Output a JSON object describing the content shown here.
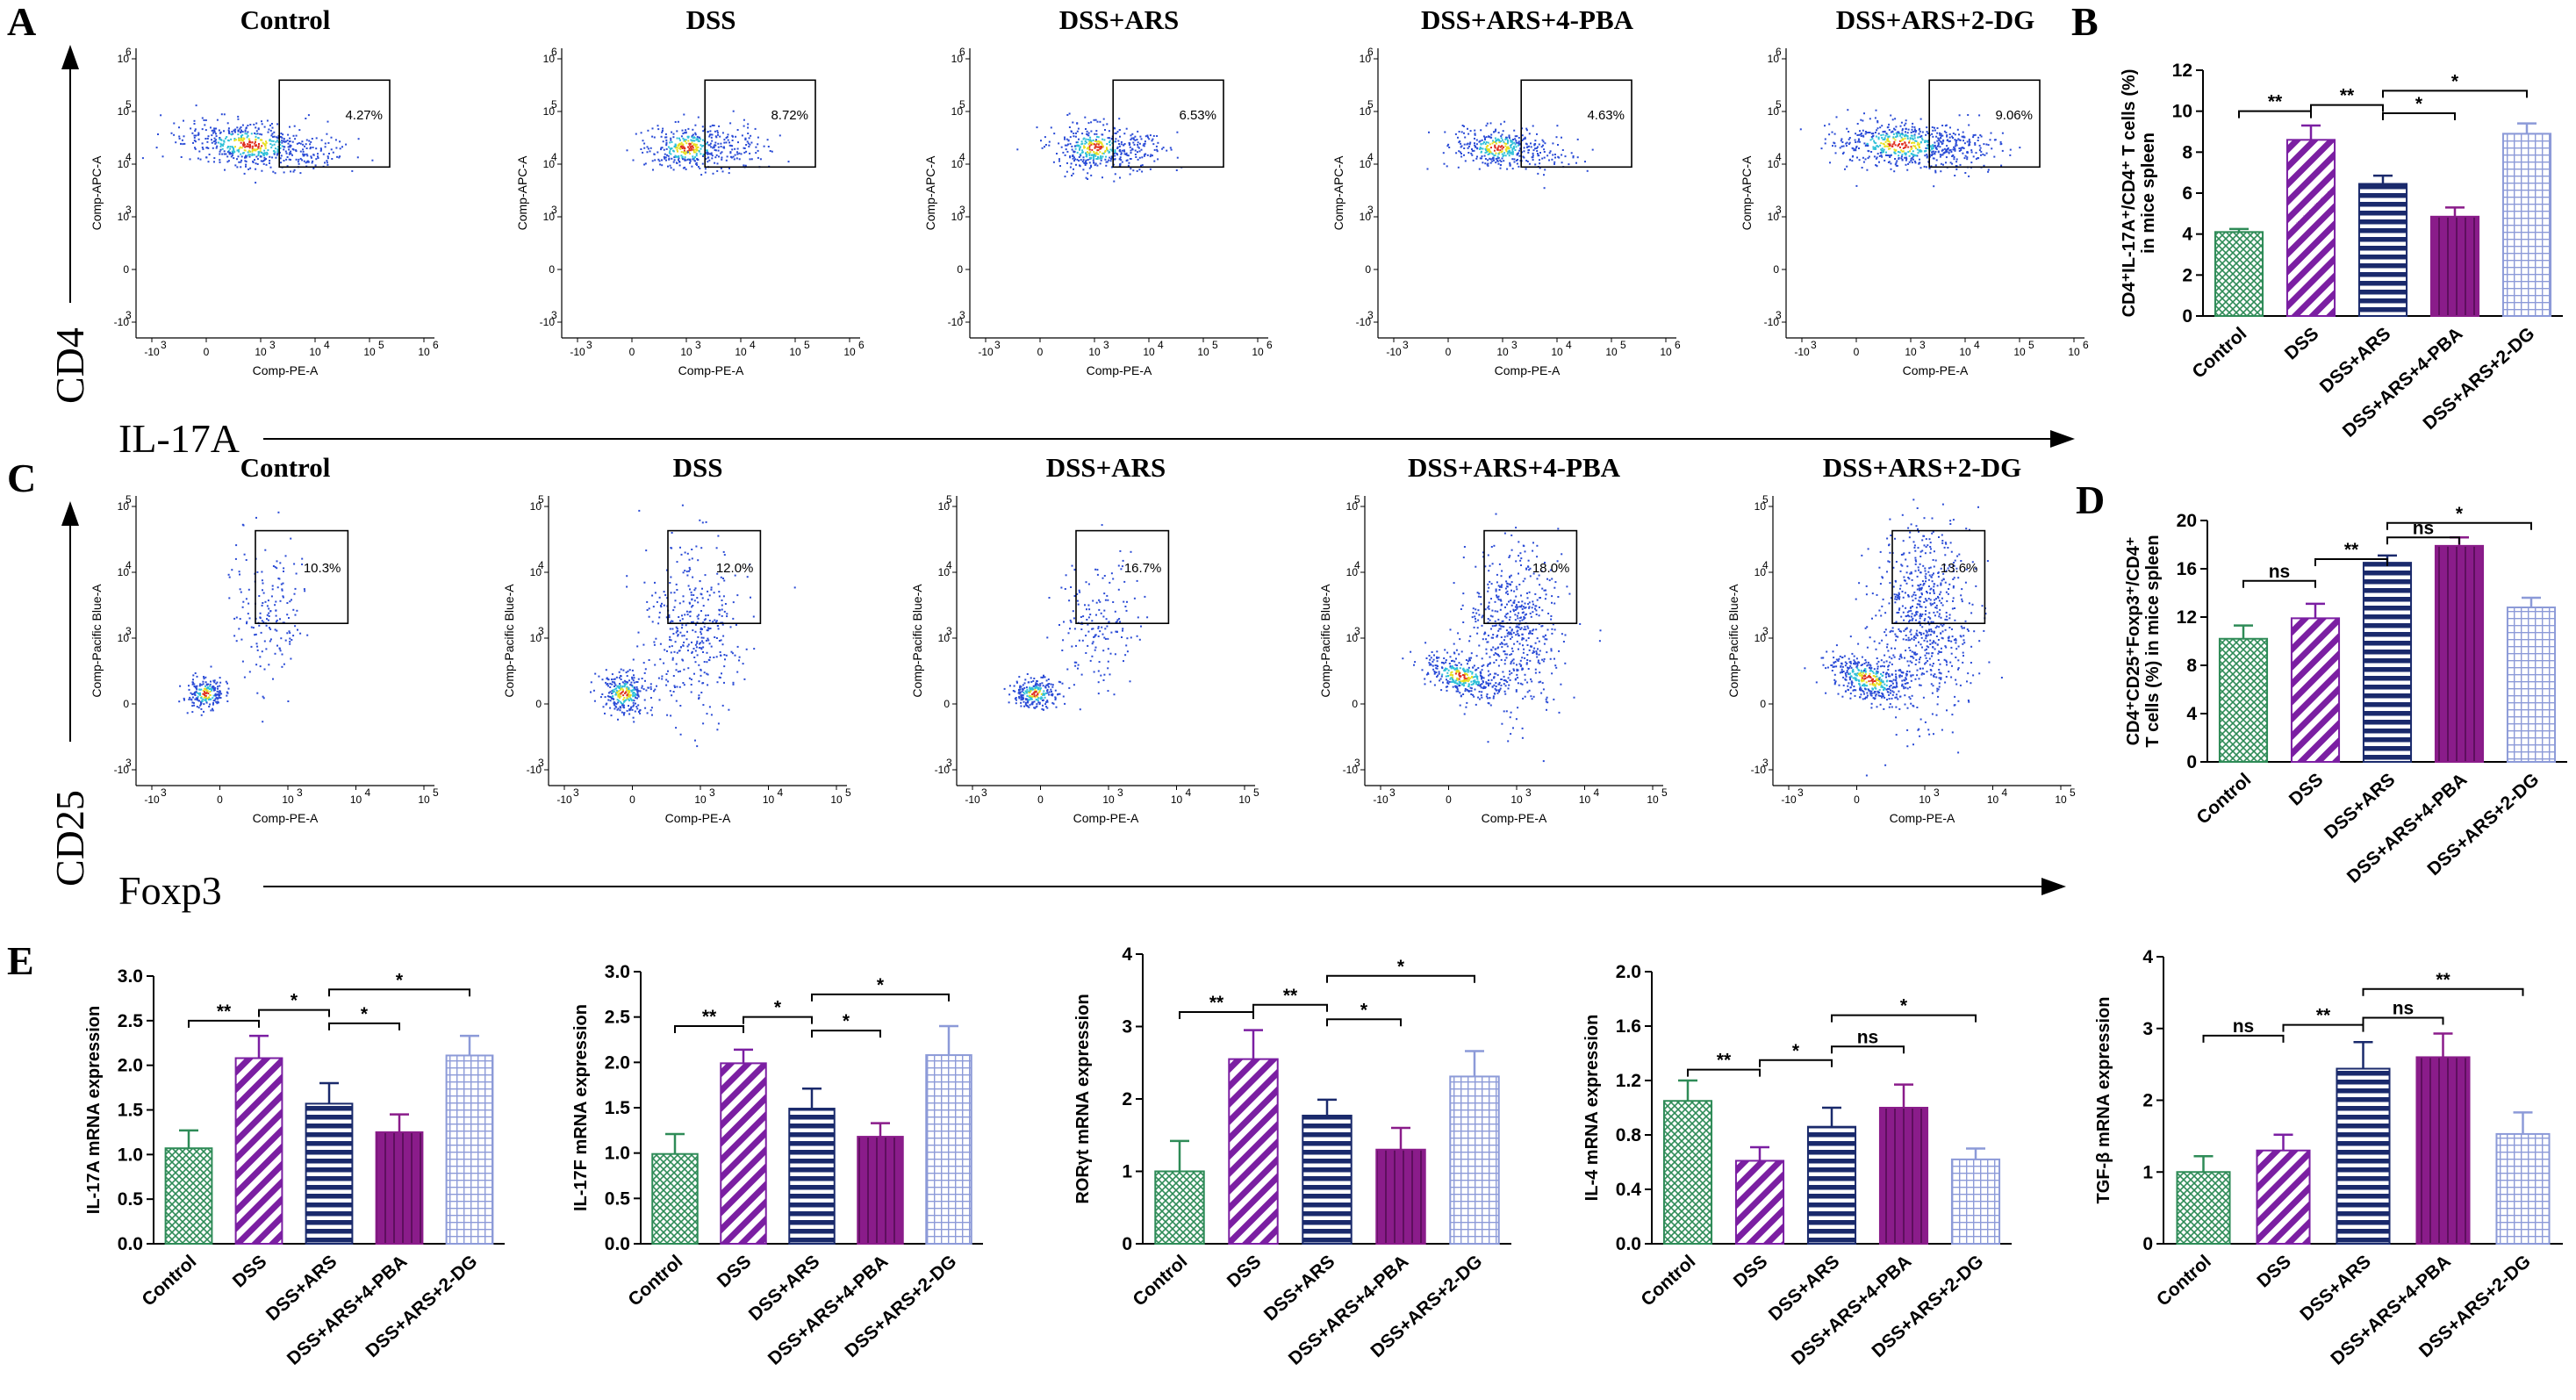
{
  "panel_labels": {
    "A": "A",
    "B": "B",
    "C": "C",
    "D": "D",
    "E": "E"
  },
  "flow_A": {
    "y_axis_big": "CD4",
    "x_axis_big": "IL-17A",
    "x_label": "Comp-PE-A",
    "y_label": "Comp-APC-A",
    "tick_labels": [
      "-10",
      "0",
      "10",
      "10",
      "10",
      "10"
    ],
    "tick_exps": [
      "3",
      "",
      "3",
      "4",
      "5",
      "6"
    ],
    "plots": [
      {
        "title": "Control",
        "gate_pct": "4.27%"
      },
      {
        "title": "DSS",
        "gate_pct": "8.72%"
      },
      {
        "title": "DSS+ARS",
        "gate_pct": "6.53%"
      },
      {
        "title": "DSS+ARS+4-PBA",
        "gate_pct": "4.63%"
      },
      {
        "title": "DSS+ARS+2-DG",
        "gate_pct": "9.06%"
      }
    ]
  },
  "flow_C": {
    "y_axis_big": "CD25",
    "x_axis_big": "Foxp3",
    "x_label": "Comp-PE-A",
    "y_label": "Comp-Pacific Blue-A",
    "tick_labels": [
      "-10",
      "0",
      "10",
      "10",
      "10"
    ],
    "tick_exps": [
      "3",
      "",
      "3",
      "4",
      "5"
    ],
    "plots": [
      {
        "title": "Control",
        "gate_pct": "10.3%"
      },
      {
        "title": "DSS",
        "gate_pct": "12.0%"
      },
      {
        "title": "DSS+ARS",
        "gate_pct": "16.7%"
      },
      {
        "title": "DSS+ARS+4-PBA",
        "gate_pct": "18.0%"
      },
      {
        "title": "DSS+ARS+2-DG",
        "gate_pct": "13.6%"
      }
    ]
  },
  "colors": {
    "control": "#2e8b57",
    "dss": "#7b1fa2",
    "ars": "#1a2a6c",
    "pba": "#8a1c8a",
    "dg": "#8c9ad8",
    "dot_blue": "#2a4bd6",
    "dot_cyan": "#2fc0d8",
    "dot_yellow": "#e8e020",
    "dot_red": "#e03020"
  },
  "chart_data": [
    {
      "id": "B",
      "type": "bar",
      "ylabel_lines": [
        "CD4⁺IL-17A⁺/CD4⁺ T cells (%)",
        "in mice spleen"
      ],
      "categories": [
        "Control",
        "DSS",
        "DSS+ARS",
        "DSS+ARS+4-PBA",
        "DSS+ARS+2-DG"
      ],
      "values": [
        4.1,
        8.6,
        6.45,
        4.85,
        8.9
      ],
      "errors": [
        0.15,
        0.7,
        0.4,
        0.45,
        0.5
      ],
      "ylim": [
        0,
        12
      ],
      "yticks": [
        0,
        2,
        4,
        6,
        8,
        10,
        12
      ],
      "ytick_labels": [
        "0",
        "2",
        "4",
        "6",
        "8",
        "10",
        "12"
      ],
      "sig": [
        {
          "from": 0,
          "to": 1,
          "label": "**",
          "y": 10.0
        },
        {
          "from": 1,
          "to": 2,
          "label": "**",
          "y": 10.3
        },
        {
          "from": 2,
          "to": 3,
          "label": "*",
          "y": 9.9
        },
        {
          "from": 2,
          "to": 4,
          "label": "*",
          "y": 11.0
        }
      ]
    },
    {
      "id": "D",
      "type": "bar",
      "ylabel_lines": [
        "CD4⁺CD25⁺Foxp3⁺/CD4⁺",
        "T cells (%) in mice spleen"
      ],
      "categories": [
        "Control",
        "DSS",
        "DSS+ARS",
        "DSS+ARS+4-PBA",
        "DSS+ARS+2-DG"
      ],
      "values": [
        10.2,
        11.9,
        16.5,
        17.9,
        12.8
      ],
      "errors": [
        1.1,
        1.2,
        0.6,
        0.7,
        0.8
      ],
      "ylim": [
        0,
        20
      ],
      "yticks": [
        0,
        4,
        8,
        12,
        16,
        20
      ],
      "ytick_labels": [
        "0",
        "4",
        "8",
        "12",
        "16",
        "20"
      ],
      "sig": [
        {
          "from": 0,
          "to": 1,
          "label": "ns",
          "y": 15.0
        },
        {
          "from": 1,
          "to": 2,
          "label": "**",
          "y": 16.8
        },
        {
          "from": 2,
          "to": 3,
          "label": "ns",
          "y": 18.6
        },
        {
          "from": 2,
          "to": 4,
          "label": "*",
          "y": 19.8
        }
      ]
    },
    {
      "id": "E1",
      "type": "bar",
      "ylabel_lines": [
        "IL-17A mRNA expression"
      ],
      "categories": [
        "Control",
        "DSS",
        "DSS+ARS",
        "DSS+ARS+4-PBA",
        "DSS+ARS+2-DG"
      ],
      "values": [
        1.07,
        2.08,
        1.57,
        1.25,
        2.11
      ],
      "errors": [
        0.2,
        0.25,
        0.23,
        0.2,
        0.22
      ],
      "ylim": [
        0,
        3.0
      ],
      "yticks": [
        0,
        0.5,
        1.0,
        1.5,
        2.0,
        2.5,
        3.0
      ],
      "ytick_labels": [
        "0.0",
        "0.5",
        "1.0",
        "1.5",
        "2.0",
        "2.5",
        "3.0"
      ],
      "sig": [
        {
          "from": 0,
          "to": 1,
          "label": "**",
          "y": 2.5
        },
        {
          "from": 1,
          "to": 2,
          "label": "*",
          "y": 2.62
        },
        {
          "from": 2,
          "to": 3,
          "label": "*",
          "y": 2.47
        },
        {
          "from": 2,
          "to": 4,
          "label": "*",
          "y": 2.85
        }
      ]
    },
    {
      "id": "E2",
      "type": "bar",
      "ylabel_lines": [
        "IL-17F mRNA expression"
      ],
      "categories": [
        "Control",
        "DSS",
        "DSS+ARS",
        "DSS+ARS+4-PBA",
        "DSS+ARS+2-DG"
      ],
      "values": [
        0.99,
        1.99,
        1.49,
        1.18,
        2.08
      ],
      "errors": [
        0.22,
        0.15,
        0.22,
        0.15,
        0.32
      ],
      "ylim": [
        0,
        3.0
      ],
      "yticks": [
        0,
        0.5,
        1.0,
        1.5,
        2.0,
        2.5,
        3.0
      ],
      "ytick_labels": [
        "0.0",
        "0.5",
        "1.0",
        "1.5",
        "2.0",
        "2.5",
        "3.0"
      ],
      "sig": [
        {
          "from": 0,
          "to": 1,
          "label": "**",
          "y": 2.4
        },
        {
          "from": 1,
          "to": 2,
          "label": "*",
          "y": 2.5
        },
        {
          "from": 2,
          "to": 3,
          "label": "*",
          "y": 2.35
        },
        {
          "from": 2,
          "to": 4,
          "label": "*",
          "y": 2.75
        }
      ]
    },
    {
      "id": "E3",
      "type": "bar",
      "ylabel_lines": [
        "RORγt mRNA expression"
      ],
      "categories": [
        "Control",
        "DSS",
        "DSS+ARS",
        "DSS+ARS+4-PBA",
        "DSS+ARS+2-DG"
      ],
      "values": [
        1.0,
        2.55,
        1.77,
        1.3,
        2.31
      ],
      "errors": [
        0.42,
        0.4,
        0.22,
        0.3,
        0.35
      ],
      "ylim": [
        0,
        4
      ],
      "yticks": [
        0,
        1,
        2,
        3,
        4
      ],
      "ytick_labels": [
        "0",
        "1",
        "2",
        "3",
        "4"
      ],
      "sig": [
        {
          "from": 0,
          "to": 1,
          "label": "**",
          "y": 3.2
        },
        {
          "from": 1,
          "to": 2,
          "label": "**",
          "y": 3.3
        },
        {
          "from": 2,
          "to": 3,
          "label": "*",
          "y": 3.1
        },
        {
          "from": 2,
          "to": 4,
          "label": "*",
          "y": 3.7
        }
      ]
    },
    {
      "id": "E4",
      "type": "bar",
      "ylabel_lines": [
        "IL-4 mRNA expression"
      ],
      "categories": [
        "Control",
        "DSS",
        "DSS+ARS",
        "DSS+ARS+4-PBA",
        "DSS+ARS+2-DG"
      ],
      "values": [
        1.05,
        0.61,
        0.86,
        1.0,
        0.62
      ],
      "errors": [
        0.15,
        0.1,
        0.14,
        0.17,
        0.08
      ],
      "ylim": [
        0,
        2.0
      ],
      "yticks": [
        0,
        0.4,
        0.8,
        1.2,
        1.6,
        2.0
      ],
      "ytick_labels": [
        "0.0",
        "0.4",
        "0.8",
        "1.2",
        "1.6",
        "2.0"
      ],
      "sig": [
        {
          "from": 0,
          "to": 1,
          "label": "**",
          "y": 1.28
        },
        {
          "from": 1,
          "to": 2,
          "label": "*",
          "y": 1.35
        },
        {
          "from": 2,
          "to": 3,
          "label": "ns",
          "y": 1.45
        },
        {
          "from": 2,
          "to": 4,
          "label": "*",
          "y": 1.68
        }
      ]
    },
    {
      "id": "E5",
      "type": "bar",
      "ylabel_lines": [
        "TGF-β mRNA expression"
      ],
      "categories": [
        "Control",
        "DSS",
        "DSS+ARS",
        "DSS+ARS+4-PBA",
        "DSS+ARS+2-DG"
      ],
      "values": [
        1.0,
        1.3,
        2.44,
        2.6,
        1.53
      ],
      "errors": [
        0.22,
        0.22,
        0.37,
        0.33,
        0.3
      ],
      "ylim": [
        0,
        4
      ],
      "yticks": [
        0,
        1,
        2,
        3,
        4
      ],
      "ytick_labels": [
        "0",
        "1",
        "2",
        "3",
        "4"
      ],
      "sig": [
        {
          "from": 0,
          "to": 1,
          "label": "ns",
          "y": 2.9
        },
        {
          "from": 1,
          "to": 2,
          "label": "**",
          "y": 3.05
        },
        {
          "from": 2,
          "to": 3,
          "label": "ns",
          "y": 3.15
        },
        {
          "from": 2,
          "to": 4,
          "label": "**",
          "y": 3.55
        }
      ]
    }
  ]
}
